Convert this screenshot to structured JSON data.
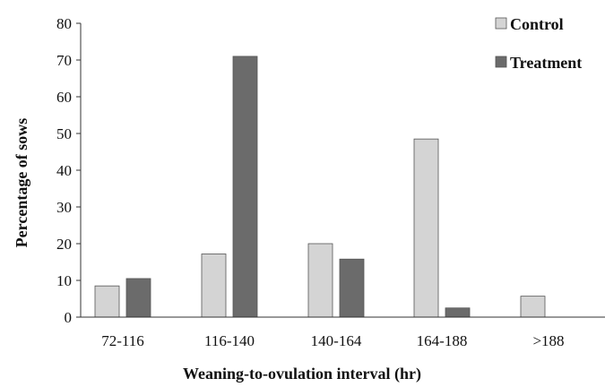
{
  "chart_data": {
    "type": "bar",
    "title": "",
    "xlabel": "Weaning-to-ovulation interval (hr)",
    "ylabel": "Percentage of sows",
    "ylim": [
      0,
      80
    ],
    "yticks": [
      0,
      10,
      20,
      30,
      40,
      50,
      60,
      70,
      80
    ],
    "grid": false,
    "legend_position": "top-right",
    "categories": [
      "72-116",
      "116-140",
      "140-164",
      "164-188",
      ">188"
    ],
    "series": [
      {
        "name": "Control",
        "color": "#d4d4d4",
        "values": [
          8.5,
          17.2,
          20.0,
          48.5,
          5.7
        ]
      },
      {
        "name": "Treatment",
        "color": "#6b6b6b",
        "values": [
          10.5,
          71.0,
          15.8,
          2.5,
          0
        ]
      }
    ]
  }
}
